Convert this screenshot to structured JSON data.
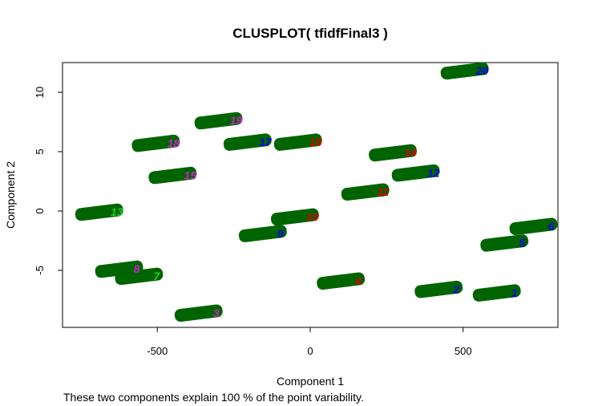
{
  "chart_data": {
    "type": "scatter",
    "title": "CLUSPLOT( tfidfFinal3 )",
    "xlabel": "Component 1",
    "ylabel": "Component 2",
    "note": "These two components explain 100 % of the point variability.",
    "xlim": [
      -810,
      810
    ],
    "ylim": [
      -9.8,
      12.5
    ],
    "x_ticks": [
      -500,
      0,
      500
    ],
    "y_ticks": [
      -5,
      0,
      5,
      10
    ],
    "grid": false,
    "legend": "none",
    "colors": {
      "point_mark": "#006400",
      "red": "#dd0000",
      "blue": "#0000ee",
      "magenta": "#cc22cc",
      "green": "#22cc22"
    },
    "points": [
      {
        "label": "1",
        "x": 610,
        "y": -6.9,
        "color": "blue"
      },
      {
        "label": "2",
        "x": 420,
        "y": -6.6,
        "color": "blue"
      },
      {
        "label": "3",
        "x": -365,
        "y": -8.6,
        "color": "magenta"
      },
      {
        "label": "4",
        "x": 100,
        "y": -5.9,
        "color": "red"
      },
      {
        "label": "5",
        "x": 635,
        "y": -2.7,
        "color": "blue"
      },
      {
        "label": "6",
        "x": 730,
        "y": -1.3,
        "color": "blue"
      },
      {
        "label": "7",
        "x": -560,
        "y": -5.5,
        "color": "green"
      },
      {
        "label": "8",
        "x": -625,
        "y": -4.9,
        "color": "magenta"
      },
      {
        "label": "9",
        "x": -155,
        "y": -1.9,
        "color": "blue"
      },
      {
        "label": "10",
        "x": -50,
        "y": -0.5,
        "color": "red"
      },
      {
        "label": "11",
        "x": 180,
        "y": 1.6,
        "color": "red"
      },
      {
        "label": "12",
        "x": 345,
        "y": 3.2,
        "color": "blue"
      },
      {
        "label": "13",
        "x": -690,
        "y": -0.1,
        "color": "green"
      },
      {
        "label": "14",
        "x": 270,
        "y": 4.9,
        "color": "red"
      },
      {
        "label": "15",
        "x": -450,
        "y": 3.0,
        "color": "magenta"
      },
      {
        "label": "16",
        "x": -40,
        "y": 5.8,
        "color": "red"
      },
      {
        "label": "17",
        "x": -205,
        "y": 5.8,
        "color": "blue"
      },
      {
        "label": "18",
        "x": -505,
        "y": 5.7,
        "color": "magenta"
      },
      {
        "label": "19",
        "x": -300,
        "y": 7.6,
        "color": "magenta"
      },
      {
        "label": "20",
        "x": 505,
        "y": 11.8,
        "color": "blue"
      }
    ]
  }
}
